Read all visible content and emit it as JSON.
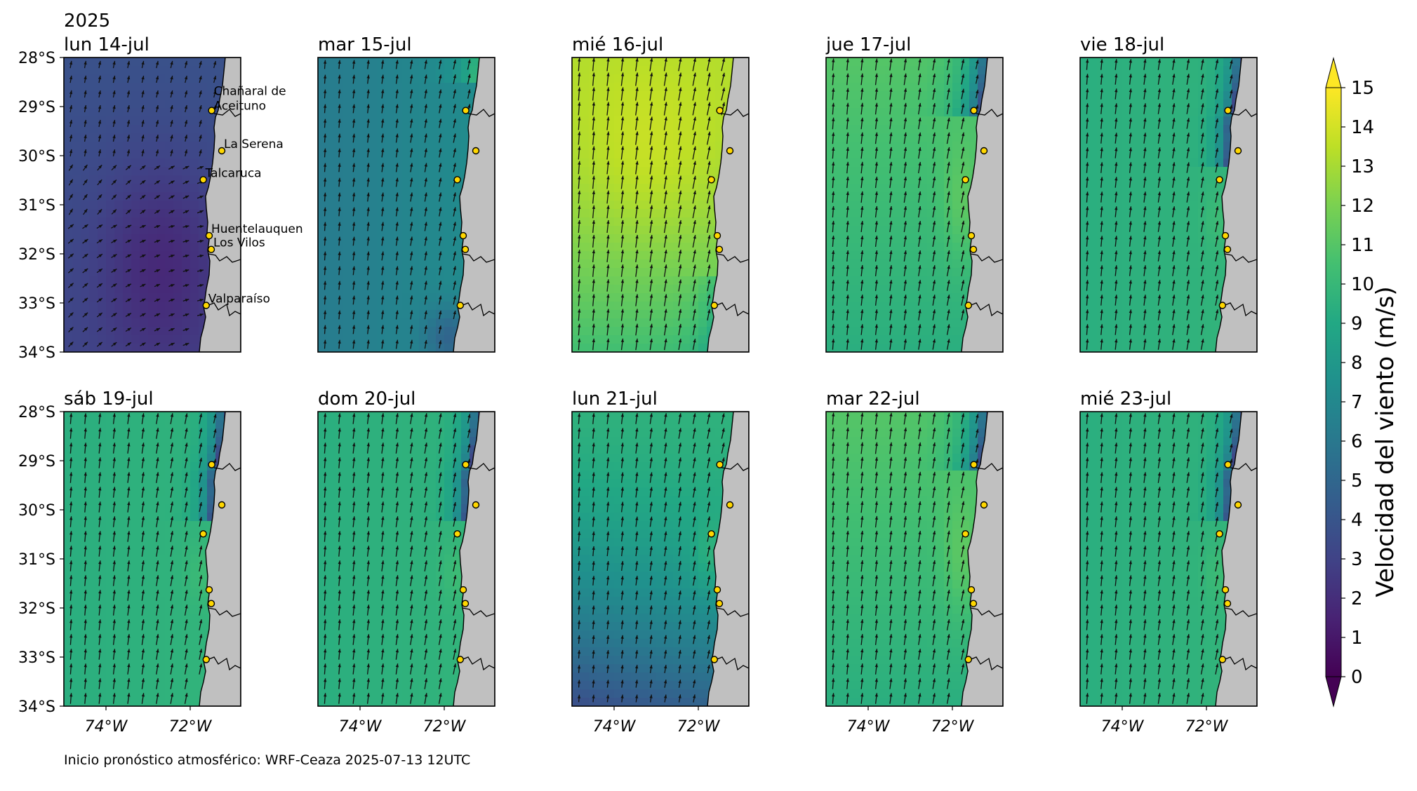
{
  "year": "2025",
  "panels": [
    {
      "title": "lun 14-jul",
      "field": "calm"
    },
    {
      "title": "mar 15-jul",
      "field": "moderate"
    },
    {
      "title": "mié 16-jul",
      "field": "strong"
    },
    {
      "title": "jue 17-jul",
      "field": "fresh"
    },
    {
      "title": "vie 18-jul",
      "field": "fresh-lee"
    },
    {
      "title": "sáb 19-jul",
      "field": "fresh-lee"
    },
    {
      "title": "dom 20-jul",
      "field": "fresh-lee"
    },
    {
      "title": "lun 21-jul",
      "field": "moderate-south"
    },
    {
      "title": "mar 22-jul",
      "field": "fresh"
    },
    {
      "title": "mié 23-jul",
      "field": "fresh-lee"
    }
  ],
  "lat_ticks": [
    "28°S",
    "29°S",
    "30°S",
    "31°S",
    "32°S",
    "33°S",
    "34°S"
  ],
  "lon_ticks": [
    "74°W",
    "72°W"
  ],
  "stations": [
    {
      "name": "Chañaral de\nAceituno",
      "lat": -29.08,
      "lon": -71.49
    },
    {
      "name": "La Serena",
      "lat": -29.9,
      "lon": -71.25
    },
    {
      "name": "Talcaruca",
      "lat": -30.49,
      "lon": -71.69
    },
    {
      "name": "Huentelauquen",
      "lat": -31.63,
      "lon": -71.55
    },
    {
      "name": "Los Vilos",
      "lat": -31.91,
      "lon": -71.5
    },
    {
      "name": "Valparaíso",
      "lat": -33.05,
      "lon": -71.62
    }
  ],
  "colorbar": {
    "label": "Velocidad del viento (m/s)",
    "ticks": [
      "0",
      "1",
      "2",
      "3",
      "4",
      "5",
      "6",
      "7",
      "8",
      "9",
      "10",
      "11",
      "12",
      "13",
      "14",
      "15"
    ],
    "min": 0,
    "max": 15,
    "colors": [
      "#440154",
      "#482374",
      "#404387",
      "#345e8d",
      "#29788e",
      "#20908d",
      "#22a884",
      "#43bf71",
      "#7ad151",
      "#bddf26",
      "#fde725"
    ]
  },
  "footer": "Inicio pronóstico atmosférico: WRF-Ceaza 2025-07-13 12UTC",
  "colors": {
    "land": "#c0c0c0",
    "station": "#ffd700",
    "arrow": "#111111"
  }
}
